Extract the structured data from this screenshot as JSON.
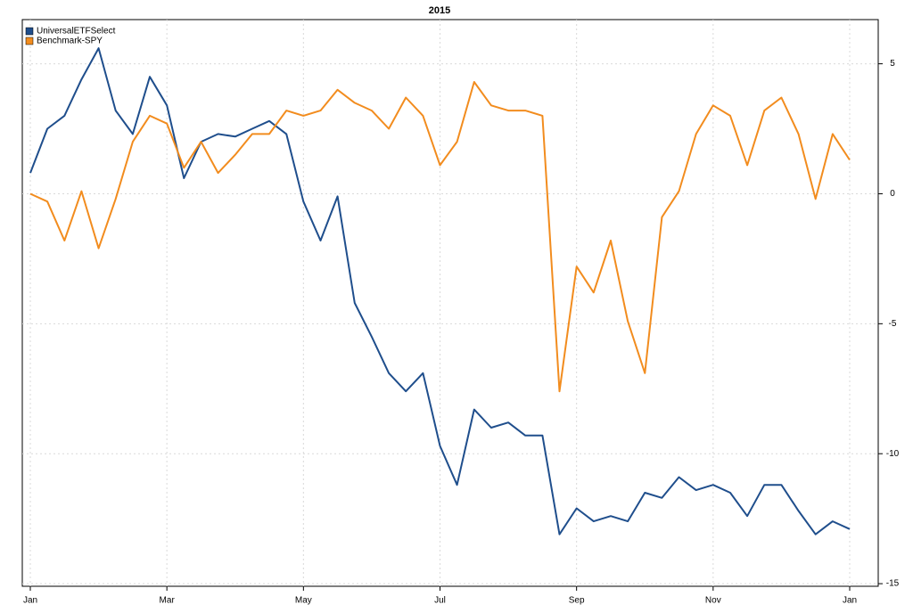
{
  "chart_data": {
    "type": "line",
    "title": "2015",
    "categories": [
      "Jan",
      null,
      null,
      null,
      null,
      null,
      null,
      null,
      "Mar",
      null,
      null,
      null,
      null,
      null,
      null,
      null,
      "May",
      null,
      null,
      null,
      null,
      null,
      null,
      null,
      "Jul",
      null,
      null,
      null,
      null,
      null,
      null,
      null,
      "Sep",
      null,
      null,
      null,
      null,
      null,
      null,
      null,
      "Nov",
      null,
      null,
      null,
      null,
      null,
      null,
      null,
      "Jan"
    ],
    "series": [
      {
        "name": "UniversalETFSelect",
        "color": "#1f4e8c",
        "values": [
          0.8,
          2.5,
          3.0,
          4.4,
          5.6,
          3.2,
          2.3,
          4.5,
          3.4,
          0.6,
          2.0,
          2.3,
          2.2,
          2.5,
          2.8,
          2.3,
          -0.3,
          -1.8,
          -0.1,
          -4.2,
          -5.5,
          -6.9,
          -7.6,
          -6.9,
          -9.7,
          -11.2,
          -8.3,
          -9.0,
          -8.8,
          -9.3,
          -9.3,
          -13.1,
          -12.1,
          -12.6,
          -12.4,
          -12.6,
          -11.5,
          -11.7,
          -10.9,
          -11.4,
          -11.2,
          -11.5,
          -12.4,
          -11.2,
          -11.2,
          -12.2,
          -13.1,
          -12.6,
          -12.9
        ]
      },
      {
        "name": "Benchmark-SPY",
        "color": "#f28c1e",
        "values": [
          0.0,
          -0.3,
          -1.8,
          0.1,
          -2.1,
          -0.2,
          2.0,
          3.0,
          2.7,
          1.0,
          2.0,
          0.8,
          1.5,
          2.3,
          2.3,
          3.2,
          3.0,
          3.2,
          4.0,
          3.5,
          3.2,
          2.5,
          3.7,
          3.0,
          1.1,
          2.0,
          4.3,
          3.4,
          3.2,
          3.2,
          3.0,
          -7.6,
          -2.8,
          -3.8,
          -1.8,
          -4.9,
          -6.9,
          -0.9,
          0.1,
          2.3,
          3.4,
          3.0,
          1.1,
          3.2,
          3.7,
          2.3,
          -0.2,
          2.3,
          1.3
        ]
      }
    ],
    "ylim": [
      -15.1,
      6.7
    ],
    "yticks": [
      5,
      0,
      -5,
      -10,
      -15
    ],
    "grid": true,
    "legend": "top-left"
  }
}
